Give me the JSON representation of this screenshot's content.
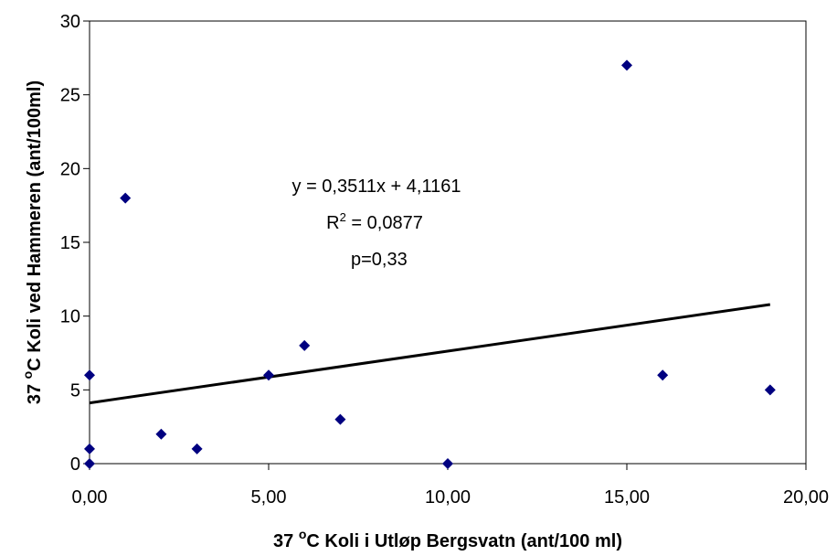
{
  "chart_data": {
    "type": "scatter",
    "x": [
      0,
      0,
      0,
      1,
      2,
      3,
      5,
      6,
      7,
      10,
      15,
      16,
      19
    ],
    "y": [
      6,
      1,
      0,
      18,
      2,
      1,
      6,
      8,
      3,
      0,
      27,
      6,
      5
    ],
    "xlim": [
      0,
      20
    ],
    "ylim": [
      0,
      30
    ],
    "x_ticks": [
      0,
      5,
      10,
      15,
      20
    ],
    "x_tick_labels": [
      "0,00",
      "5,00",
      "10,00",
      "15,00",
      "20,00"
    ],
    "y_ticks": [
      0,
      5,
      10,
      15,
      20,
      25,
      30
    ],
    "y_tick_labels": [
      "0",
      "5",
      "10",
      "15",
      "20",
      "25",
      "30"
    ],
    "xlabel": {
      "pre": "37 ",
      "sup": "o",
      "post": "C Koli i Utløp Bergsvatn (ant/100 ml)"
    },
    "ylabel": {
      "pre": "37 ",
      "sup": "o",
      "post": "C Koli ved Hammeren (ant/100ml)"
    },
    "trendline": {
      "slope": 0.3511,
      "intercept": 4.1161,
      "x_range": [
        0,
        19
      ]
    },
    "annotations": {
      "equation": "y = 0,3511x + 4,1161",
      "r2_pre": "R",
      "r2_sup": "2",
      "r2_post": " = 0,0877",
      "p_value": "p=0,33"
    },
    "grid": false,
    "marker_color": "#000080",
    "line_color": "#000000"
  }
}
